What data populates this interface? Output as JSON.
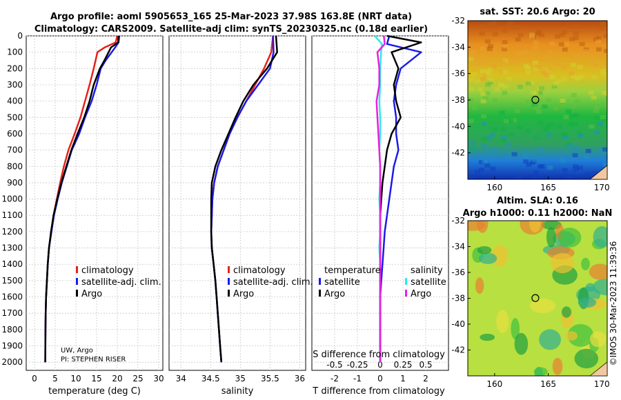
{
  "title": {
    "line1": "Argo profile: aoml 5905653_165 25-Mar-2023 37.98S 163.8E (NRT data)",
    "line2": "Climatology: CARS2009. Satellite-adj clim: synTS_20230325.nc (0.18d earlier)"
  },
  "side_label": "©IMOS 30-Mar-2023 11:39:36",
  "credit": {
    "line1": "UW, Argo",
    "line2": "PI: STEPHEN RISER"
  },
  "colors": {
    "climatology": "#e8201a",
    "satellite": "#1a1ae8",
    "argo": "#000000",
    "sat_sal": "#2ee8e8",
    "argo_sal": "#e820e0"
  },
  "chart_data": [
    {
      "type": "line",
      "title": "",
      "xlabel": "temperature (deg C)",
      "ylabel": "",
      "xlim": [
        -2,
        31
      ],
      "ylim": [
        2050,
        0
      ],
      "xticks": [
        0,
        5,
        10,
        15,
        20,
        25,
        30
      ],
      "yticks": [
        0,
        100,
        200,
        300,
        400,
        500,
        600,
        700,
        800,
        900,
        1000,
        1100,
        1200,
        1300,
        1400,
        1500,
        1600,
        1700,
        1800,
        1900,
        2000
      ],
      "grid": true,
      "legend": [
        "climatology",
        "satellite-adj. clim.",
        "Argo"
      ],
      "series": [
        {
          "name": "climatology",
          "x": [
            20.0,
            19.6,
            17.0,
            15.2,
            14.3,
            13.3,
            12.2,
            11.1,
            9.7,
            8.2,
            7.1,
            6.2,
            5.4,
            4.6,
            4.0,
            3.5,
            3.2,
            3.0,
            2.8,
            2.7,
            2.65,
            2.6
          ],
          "y": [
            0,
            40,
            70,
            100,
            200,
            300,
            400,
            500,
            600,
            700,
            800,
            900,
            1000,
            1100,
            1200,
            1300,
            1400,
            1500,
            1600,
            1700,
            1800,
            2000
          ]
        },
        {
          "name": "satellite-adj. clim.",
          "x": [
            20.5,
            20.3,
            19.5,
            17.2,
            16.0,
            15.0,
            13.8,
            12.2,
            10.8,
            9.0,
            7.8,
            6.6,
            5.6,
            4.7,
            4.1,
            3.5,
            3.2,
            3.0,
            2.8,
            2.7,
            2.65,
            2.6
          ],
          "y": [
            0,
            40,
            70,
            150,
            200,
            300,
            400,
            500,
            600,
            700,
            800,
            900,
            1000,
            1100,
            1200,
            1300,
            1400,
            1500,
            1600,
            1700,
            1800,
            2000
          ]
        },
        {
          "name": "Argo",
          "x": [
            20.3,
            20.2,
            18.5,
            16.9,
            15.8,
            14.3,
            13.3,
            12.0,
            10.4,
            8.9,
            7.7,
            6.5,
            5.5,
            4.6,
            4.0,
            3.5,
            3.2,
            3.0,
            2.8,
            2.7,
            2.65,
            2.6
          ],
          "y": [
            0,
            40,
            70,
            150,
            200,
            300,
            400,
            500,
            600,
            700,
            800,
            900,
            1000,
            1100,
            1200,
            1300,
            1400,
            1500,
            1600,
            1700,
            1800,
            2000
          ]
        }
      ]
    },
    {
      "type": "line",
      "title": "",
      "xlabel": "salinity",
      "ylabel": "",
      "xlim": [
        33.8,
        36.1
      ],
      "ylim": [
        2050,
        0
      ],
      "xticks": [
        34,
        34.5,
        35,
        35.5,
        36
      ],
      "grid": true,
      "legend": [
        "climatology",
        "satellite-adj. clim.",
        "Argo"
      ],
      "series": [
        {
          "name": "climatology",
          "x": [
            35.55,
            35.52,
            35.4,
            35.25,
            35.1,
            34.95,
            34.82,
            34.72,
            34.62,
            34.56,
            34.53,
            34.52,
            34.51,
            34.52,
            34.55,
            34.58,
            34.6,
            34.62,
            34.64,
            34.66,
            34.68
          ],
          "y": [
            0,
            100,
            200,
            300,
            400,
            500,
            600,
            700,
            800,
            900,
            1000,
            1100,
            1200,
            1300,
            1400,
            1500,
            1600,
            1700,
            1800,
            1900,
            2000
          ]
        },
        {
          "name": "satellite-adj. clim.",
          "x": [
            35.55,
            35.56,
            35.5,
            35.3,
            35.1,
            34.95,
            34.82,
            34.72,
            34.62,
            34.56,
            34.53,
            34.52,
            34.51,
            34.52,
            34.55,
            34.58,
            34.6,
            34.62,
            34.64,
            34.66,
            34.68
          ],
          "y": [
            0,
            100,
            200,
            300,
            400,
            500,
            600,
            700,
            800,
            900,
            1000,
            1100,
            1200,
            1300,
            1400,
            1500,
            1600,
            1700,
            1800,
            1900,
            2000
          ]
        },
        {
          "name": "Argo",
          "x": [
            35.6,
            35.62,
            35.45,
            35.22,
            35.05,
            34.92,
            34.8,
            34.68,
            34.58,
            34.52,
            34.51,
            34.51,
            34.51,
            34.52,
            34.55,
            34.58,
            34.6,
            34.62,
            34.64,
            34.66,
            34.68
          ],
          "y": [
            0,
            100,
            200,
            300,
            400,
            500,
            600,
            700,
            800,
            900,
            1000,
            1100,
            1200,
            1300,
            1400,
            1500,
            1600,
            1700,
            1800,
            1900,
            2000
          ]
        }
      ]
    },
    {
      "type": "line",
      "title": "",
      "xlabel": "T difference from climatology",
      "xlabel2": "S difference from climatology",
      "xlim": [
        -3,
        3
      ],
      "ylim": [
        2050,
        0
      ],
      "xticks": [
        -2,
        -1,
        0,
        1,
        2
      ],
      "xticks2_labels": [
        "-0.5",
        "-0.25",
        "0",
        "0.25",
        "0.5"
      ],
      "grid": true,
      "legend_titles": [
        "temperature",
        "salinity"
      ],
      "legend": [
        "satellite",
        "Argo",
        "satellite",
        "Argo"
      ],
      "series": [
        {
          "name": "temperature satellite",
          "x": [
            0.4,
            0.3,
            1.8,
            0.9,
            0.7,
            0.6,
            0.7,
            0.7,
            0.8,
            0.6,
            0.5,
            0.4,
            0.3,
            0.2,
            0.15,
            0.1,
            0.05,
            0,
            0,
            0,
            0
          ],
          "y": [
            0,
            50,
            100,
            200,
            300,
            400,
            500,
            600,
            700,
            800,
            900,
            1000,
            1100,
            1200,
            1300,
            1400,
            1500,
            1600,
            1700,
            1800,
            2000
          ]
        },
        {
          "name": "temperature Argo",
          "x": [
            0.3,
            1.8,
            0.5,
            0.8,
            0.6,
            0.7,
            0.9,
            0.5,
            0.3,
            0.2,
            0.1,
            0.05,
            0,
            0,
            0,
            0,
            0,
            0,
            0,
            0,
            0
          ],
          "y": [
            0,
            40,
            100,
            200,
            300,
            400,
            500,
            600,
            700,
            800,
            900,
            1000,
            1100,
            1200,
            1300,
            1400,
            1500,
            1600,
            1700,
            1800,
            2000
          ]
        },
        {
          "name": "salinity satellite",
          "x": [
            -0.06,
            0.02,
            0.01,
            0,
            0,
            -0.01,
            0,
            0,
            -0.01,
            0,
            0,
            -0.01,
            0,
            0,
            -0.01,
            0,
            0,
            0,
            0,
            0,
            0
          ],
          "y": [
            0,
            50,
            100,
            200,
            300,
            400,
            500,
            600,
            700,
            800,
            900,
            1000,
            1100,
            1200,
            1300,
            1400,
            1500,
            1600,
            1700,
            1800,
            2000
          ]
        },
        {
          "name": "salinity Argo",
          "x": [
            0.04,
            0.05,
            -0.03,
            -0.01,
            -0.01,
            -0.04,
            -0.03,
            -0.02,
            -0.01,
            0,
            0,
            0,
            0,
            0,
            0,
            0,
            0,
            0,
            0,
            0,
            0
          ],
          "y": [
            0,
            50,
            100,
            200,
            300,
            400,
            500,
            600,
            700,
            800,
            900,
            1000,
            1100,
            1200,
            1300,
            1400,
            1500,
            1600,
            1700,
            1800,
            2000
          ]
        }
      ]
    },
    {
      "type": "heatmap",
      "title": "sat. SST: 20.6 Argo: 20",
      "xlim": [
        157.5,
        170.5
      ],
      "ylim": [
        -44,
        -32
      ],
      "xticks": [
        160,
        165,
        170
      ],
      "yticks": [
        -32,
        -34,
        -36,
        -38,
        -40,
        -42
      ],
      "marker": {
        "lon": 163.8,
        "lat": -37.98
      }
    },
    {
      "type": "heatmap",
      "title": "Altim. SLA: 0.16",
      "title2": "Argo h1000: 0.11 h2000: NaN",
      "xlim": [
        157.5,
        170.5
      ],
      "ylim": [
        -44,
        -32
      ],
      "xticks": [
        160,
        165,
        170
      ],
      "yticks": [
        -32,
        -34,
        -36,
        -38,
        -40,
        -42
      ],
      "marker": {
        "lon": 163.8,
        "lat": -37.98
      }
    }
  ]
}
